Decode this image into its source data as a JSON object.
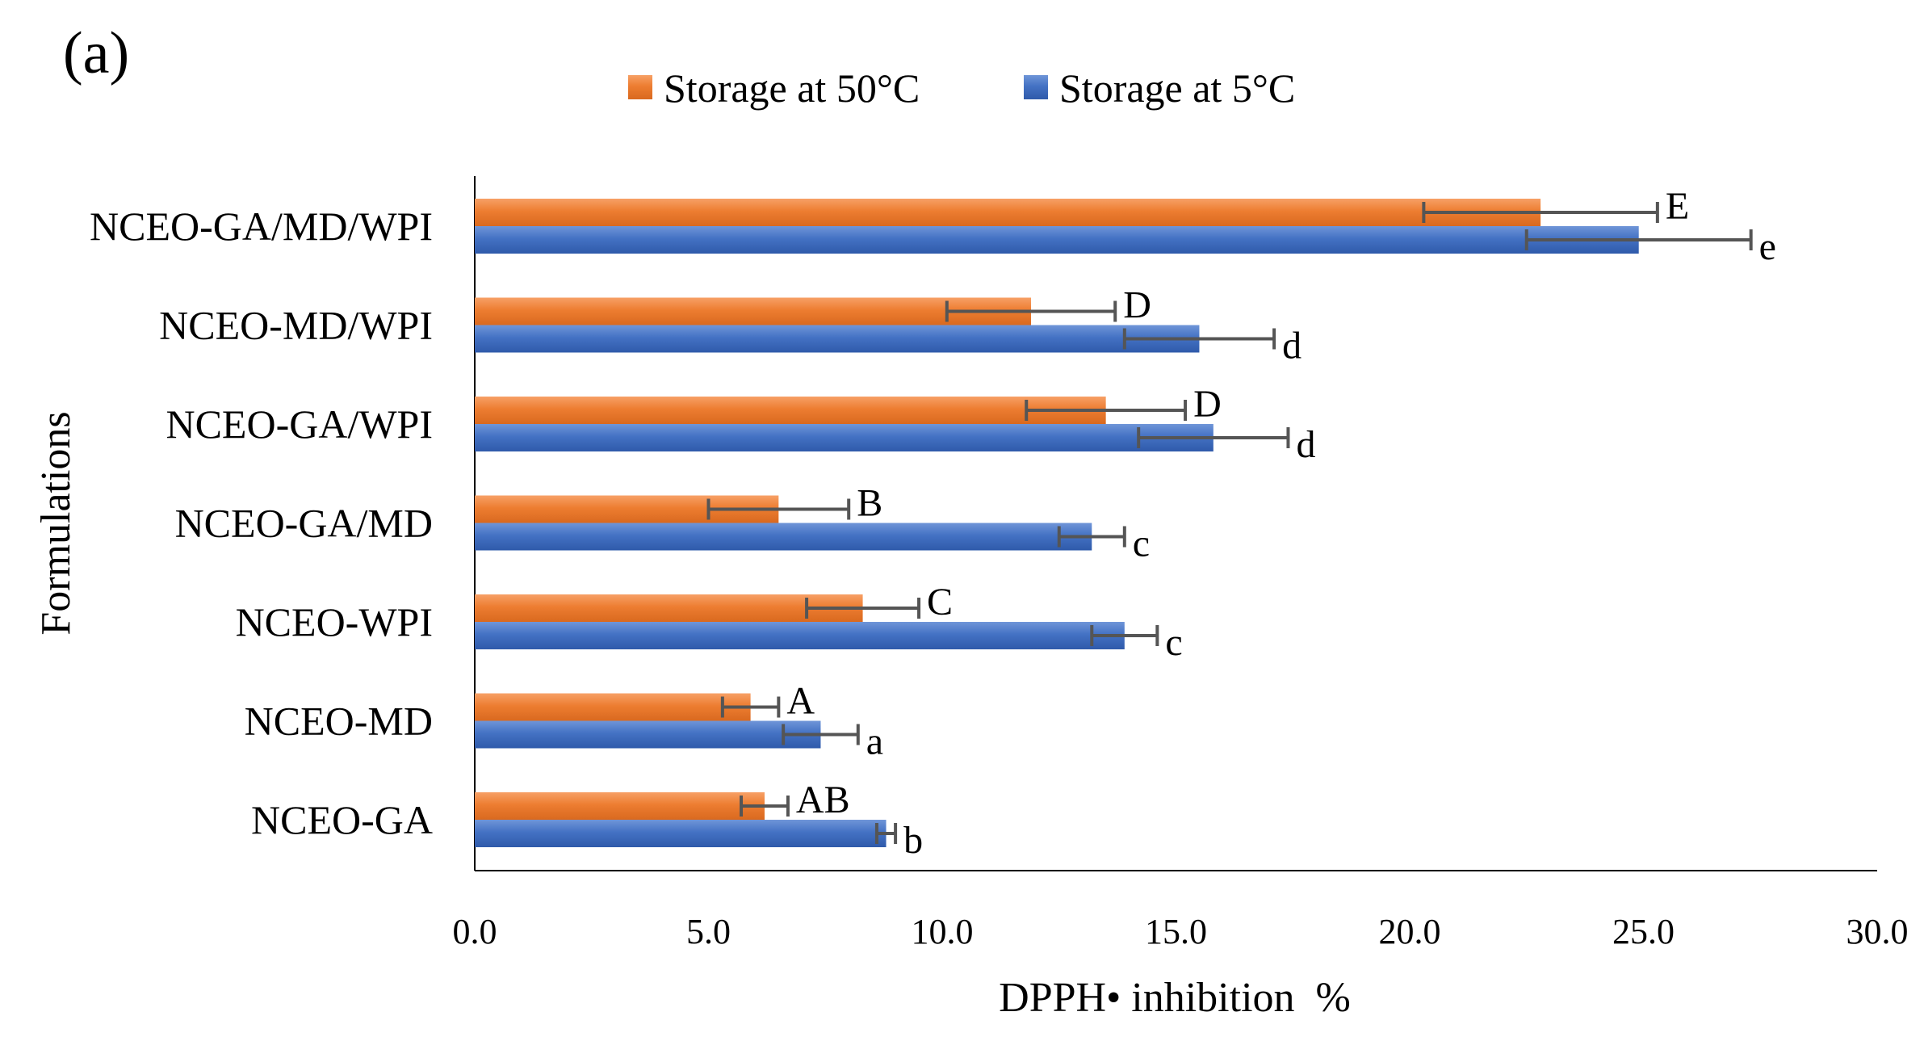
{
  "panel_label": "(a)",
  "chart_data": {
    "type": "bar",
    "orientation": "horizontal",
    "title": "",
    "xlabel": "DPPH• inhibition  %",
    "ylabel": "Formulations",
    "xlim": [
      0,
      30
    ],
    "xticks": [
      "0.0",
      "5.0",
      "10.0",
      "15.0",
      "20.0",
      "25.0",
      "30.0"
    ],
    "grid": false,
    "legend_position": "top-center",
    "categories": [
      "NCEO-GA/MD/WPI",
      "NCEO-MD/WPI",
      "NCEO-GA/WPI",
      "NCEO-GA/MD",
      "NCEO-WPI",
      "NCEO-MD",
      "NCEO-GA"
    ],
    "series": [
      {
        "name": "Storage at 50°C",
        "color": "#ED7D31",
        "values": [
          22.8,
          11.9,
          13.5,
          6.5,
          8.3,
          5.9,
          6.2
        ],
        "errors": [
          2.5,
          1.8,
          1.7,
          1.5,
          1.2,
          0.6,
          0.5
        ],
        "significance": [
          "E",
          "D",
          "D",
          "B",
          "C",
          "A",
          "AB"
        ]
      },
      {
        "name": "Storage at 5°C",
        "color": "#4472C4",
        "values": [
          24.9,
          15.5,
          15.8,
          13.2,
          13.9,
          7.4,
          8.8
        ],
        "errors": [
          2.4,
          1.6,
          1.6,
          0.7,
          0.7,
          0.8,
          0.2
        ],
        "significance": [
          "e",
          "d",
          "d",
          "c",
          "c",
          "a",
          "b"
        ]
      }
    ]
  }
}
